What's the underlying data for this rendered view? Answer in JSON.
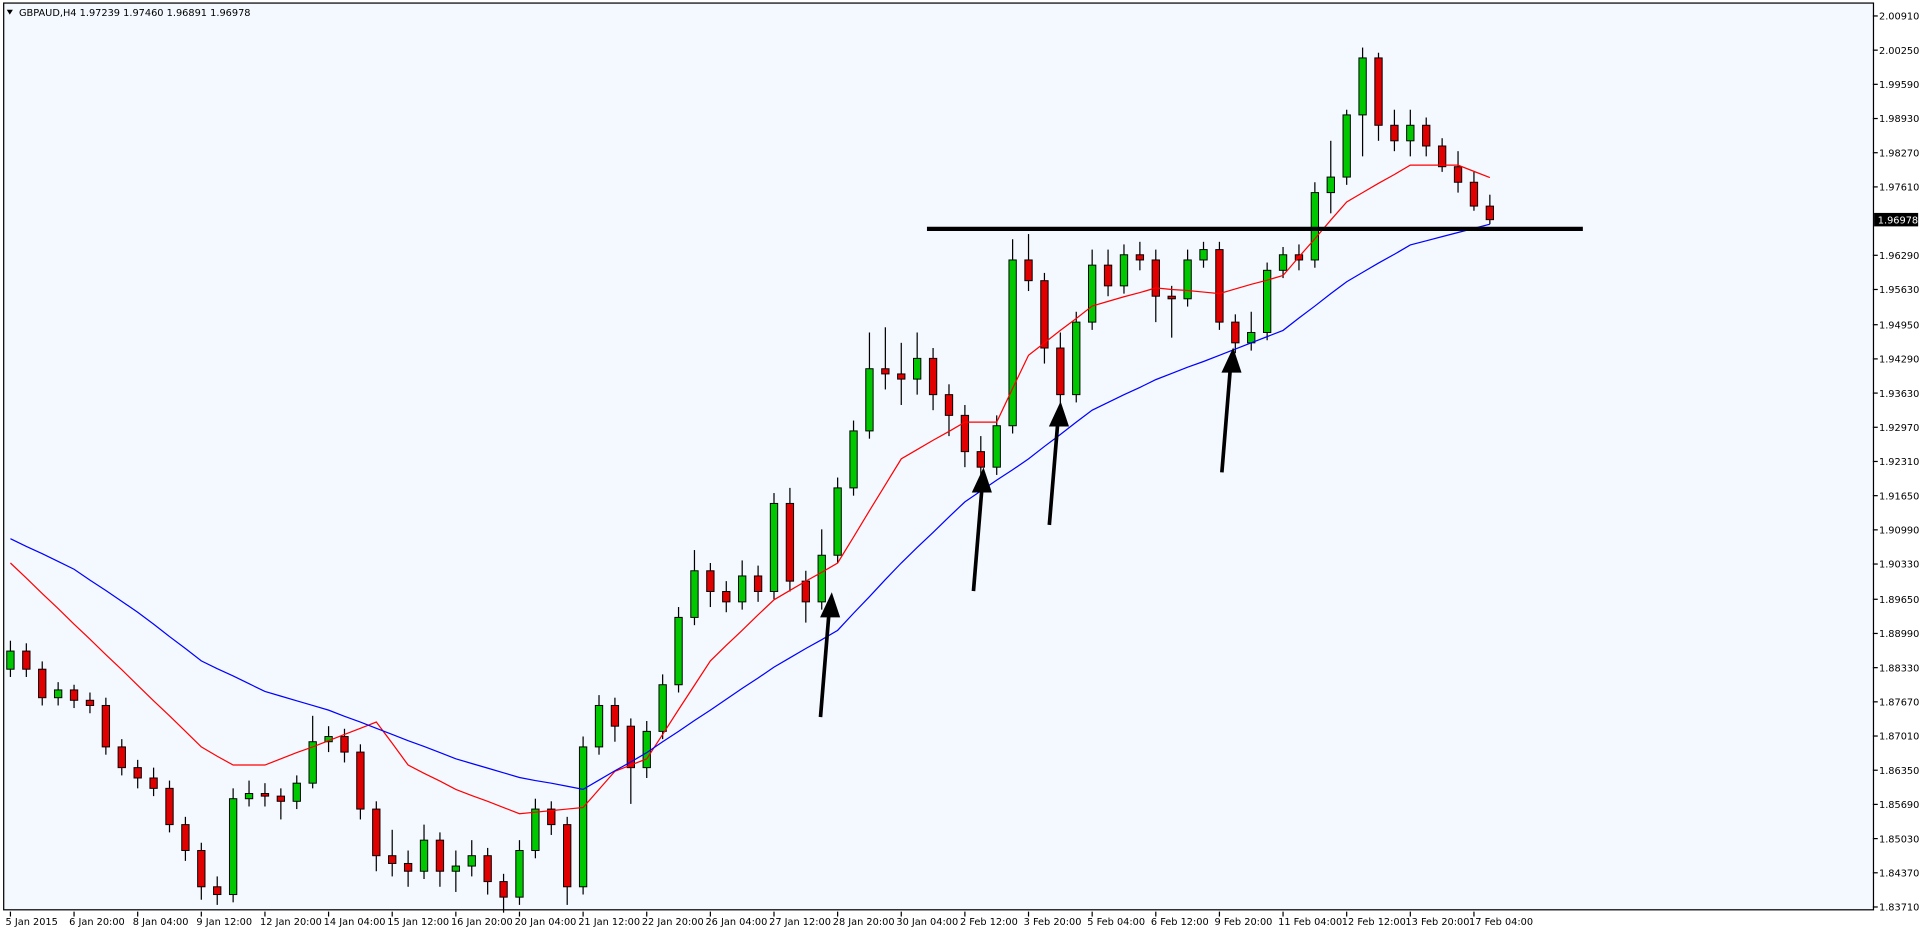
{
  "chart_data": {
    "type": "candlestick",
    "symbol": "GBPAUD,H4",
    "header_quote": [
      "1.97239",
      "1.97460",
      "1.96891",
      "1.96978"
    ],
    "up_color": "#00c800",
    "down_color": "#e00000",
    "ylim": [
      1.8362,
      2.011
    ],
    "yticks": [
      {
        "value": 1.8371,
        "label": "1.83710"
      },
      {
        "value": 1.8437,
        "label": "1.84370"
      },
      {
        "value": 1.8503,
        "label": "1.85030"
      },
      {
        "value": 1.8569,
        "label": "1.85690"
      },
      {
        "value": 1.8635,
        "label": "1.86350"
      },
      {
        "value": 1.8701,
        "label": "1.87010"
      },
      {
        "value": 1.8767,
        "label": "1.87670"
      },
      {
        "value": 1.8833,
        "label": "1.88330"
      },
      {
        "value": 1.8899,
        "label": "1.88990"
      },
      {
        "value": 1.8965,
        "label": "1.89650"
      },
      {
        "value": 1.9033,
        "label": "1.90330"
      },
      {
        "value": 1.9099,
        "label": "1.90990"
      },
      {
        "value": 1.9165,
        "label": "1.91650"
      },
      {
        "value": 1.9231,
        "label": "1.92310"
      },
      {
        "value": 1.9297,
        "label": "1.92970"
      },
      {
        "value": 1.9363,
        "label": "1.93630"
      },
      {
        "value": 1.9429,
        "label": "1.94290"
      },
      {
        "value": 1.9495,
        "label": "1.94950"
      },
      {
        "value": 1.9563,
        "label": "1.95630"
      },
      {
        "value": 1.9629,
        "label": "1.96290"
      },
      {
        "value": 1.9761,
        "label": "1.97610"
      },
      {
        "value": 1.9827,
        "label": "1.98270"
      },
      {
        "value": 1.9893,
        "label": "1.98930"
      },
      {
        "value": 1.9959,
        "label": "1.99590"
      },
      {
        "value": 2.0025,
        "label": "2.00250"
      },
      {
        "value": 2.0091,
        "label": "2.00910"
      }
    ],
    "grid": false,
    "hline": 1.968,
    "categories": [
      "5 Jan 2015",
      null,
      null,
      null,
      "6 Jan 20:00",
      null,
      null,
      null,
      "8 Jan 04:00",
      null,
      null,
      null,
      "9 Jan 12:00",
      null,
      null,
      null,
      "12 Jan 20:00",
      null,
      null,
      null,
      "14 Jan 04:00",
      null,
      null,
      null,
      "15 Jan 12:00",
      null,
      null,
      null,
      "16 Jan 20:00",
      null,
      null,
      null,
      "20 Jan 04:00",
      null,
      null,
      null,
      "21 Jan 12:00",
      null,
      null,
      null,
      "22 Jan 20:00",
      null,
      null,
      null,
      "26 Jan 04:00",
      null,
      null,
      null,
      "27 Jan 12:00",
      null,
      null,
      null,
      "28 Jan 20:00",
      null,
      null,
      null,
      "30 Jan 04:00",
      null,
      null,
      null,
      "2 Feb 12:00",
      null,
      null,
      null,
      "3 Feb 20:00",
      null,
      null,
      null,
      "5 Feb 04:00",
      null,
      null,
      null,
      "6 Feb 12:00",
      null,
      null,
      null,
      "9 Feb 20:00",
      null,
      null,
      null,
      "11 Feb 04:00",
      null,
      null,
      null,
      "12 Feb 12:00",
      null,
      null,
      null,
      "13 Feb 20:00",
      null,
      null,
      null,
      "17 Feb 04:00",
      null
    ],
    "ohlc": [
      [
        1.883,
        1.8885,
        1.8815,
        1.8865
      ],
      [
        1.8865,
        1.888,
        1.8815,
        1.883
      ],
      [
        1.883,
        1.8845,
        1.876,
        1.8775
      ],
      [
        1.8775,
        1.8805,
        1.876,
        1.879
      ],
      [
        1.879,
        1.88,
        1.8755,
        1.877
      ],
      [
        1.877,
        1.8785,
        1.8745,
        1.876
      ],
      [
        1.876,
        1.8775,
        1.8665,
        1.868
      ],
      [
        1.868,
        1.8695,
        1.8625,
        1.864
      ],
      [
        1.864,
        1.8655,
        1.86,
        1.862
      ],
      [
        1.862,
        1.864,
        1.8585,
        1.86
      ],
      [
        1.86,
        1.8615,
        1.8515,
        1.853
      ],
      [
        1.853,
        1.8545,
        1.846,
        1.848
      ],
      [
        1.848,
        1.8495,
        1.8385,
        1.841
      ],
      [
        1.841,
        1.843,
        1.8375,
        1.8395
      ],
      [
        1.8395,
        1.86,
        1.838,
        1.858
      ],
      [
        1.858,
        1.8615,
        1.8565,
        1.859
      ],
      [
        1.859,
        1.861,
        1.8565,
        1.8585
      ],
      [
        1.8585,
        1.86,
        1.854,
        1.8575
      ],
      [
        1.8575,
        1.8625,
        1.856,
        1.861
      ],
      [
        1.861,
        1.874,
        1.86,
        1.869
      ],
      [
        1.869,
        1.872,
        1.867,
        1.87
      ],
      [
        1.87,
        1.8715,
        1.865,
        1.867
      ],
      [
        1.867,
        1.8685,
        1.854,
        1.856
      ],
      [
        1.856,
        1.8575,
        1.844,
        1.847
      ],
      [
        1.847,
        1.852,
        1.843,
        1.8455
      ],
      [
        1.8455,
        1.848,
        1.841,
        1.844
      ],
      [
        1.844,
        1.853,
        1.8425,
        1.85
      ],
      [
        1.85,
        1.8515,
        1.841,
        1.844
      ],
      [
        1.844,
        1.848,
        1.84,
        1.845
      ],
      [
        1.845,
        1.85,
        1.843,
        1.847
      ],
      [
        1.847,
        1.8485,
        1.8395,
        1.842
      ],
      [
        1.842,
        1.8435,
        1.836,
        1.839
      ],
      [
        1.839,
        1.85,
        1.8375,
        1.848
      ],
      [
        1.848,
        1.858,
        1.8465,
        1.856
      ],
      [
        1.856,
        1.8575,
        1.851,
        1.853
      ],
      [
        1.853,
        1.8545,
        1.8375,
        1.841
      ],
      [
        1.841,
        1.87,
        1.8395,
        1.868
      ],
      [
        1.868,
        1.878,
        1.8665,
        1.876
      ],
      [
        1.876,
        1.8775,
        1.869,
        1.872
      ],
      [
        1.872,
        1.8735,
        1.857,
        1.864
      ],
      [
        1.864,
        1.873,
        1.862,
        1.871
      ],
      [
        1.871,
        1.882,
        1.8695,
        1.88
      ],
      [
        1.88,
        1.895,
        1.8785,
        1.893
      ],
      [
        1.893,
        1.906,
        1.8915,
        1.902
      ],
      [
        1.902,
        1.9035,
        1.895,
        1.898
      ],
      [
        1.898,
        1.9,
        1.894,
        1.896
      ],
      [
        1.896,
        1.904,
        1.8945,
        1.901
      ],
      [
        1.901,
        1.903,
        1.896,
        1.898
      ],
      [
        1.898,
        1.917,
        1.8965,
        1.915
      ],
      [
        1.915,
        1.918,
        1.898,
        1.9
      ],
      [
        1.9,
        1.902,
        1.892,
        1.896
      ],
      [
        1.896,
        1.91,
        1.8945,
        1.905
      ],
      [
        1.905,
        1.92,
        1.9035,
        1.918
      ],
      [
        1.918,
        1.931,
        1.9165,
        1.929
      ],
      [
        1.929,
        1.948,
        1.9275,
        1.941
      ],
      [
        1.941,
        1.949,
        1.937,
        1.94
      ],
      [
        1.94,
        1.946,
        1.934,
        1.939
      ],
      [
        1.939,
        1.948,
        1.936,
        1.943
      ],
      [
        1.943,
        1.945,
        1.933,
        1.936
      ],
      [
        1.936,
        1.938,
        1.928,
        1.932
      ],
      [
        1.932,
        1.934,
        1.922,
        1.925
      ],
      [
        1.925,
        1.928,
        1.919,
        1.922
      ],
      [
        1.922,
        1.932,
        1.9205,
        1.93
      ],
      [
        1.93,
        1.966,
        1.9285,
        1.962
      ],
      [
        1.962,
        1.967,
        1.956,
        1.958
      ],
      [
        1.958,
        1.9595,
        1.942,
        1.945
      ],
      [
        1.945,
        1.948,
        1.933,
        1.936
      ],
      [
        1.936,
        1.952,
        1.9345,
        1.95
      ],
      [
        1.95,
        1.964,
        1.9485,
        1.961
      ],
      [
        1.961,
        1.964,
        1.955,
        1.957
      ],
      [
        1.957,
        1.965,
        1.9555,
        1.963
      ],
      [
        1.963,
        1.9655,
        1.96,
        1.962
      ],
      [
        1.962,
        1.964,
        1.95,
        1.955
      ],
      [
        1.955,
        1.957,
        1.947,
        1.9545
      ],
      [
        1.9545,
        1.964,
        1.953,
        1.962
      ],
      [
        1.962,
        1.9655,
        1.9605,
        1.964
      ],
      [
        1.964,
        1.9655,
        1.9485,
        1.95
      ],
      [
        1.95,
        1.9515,
        1.944,
        1.946
      ],
      [
        1.946,
        1.952,
        1.9445,
        1.948
      ],
      [
        1.948,
        1.9615,
        1.9465,
        1.96
      ],
      [
        1.96,
        1.9645,
        1.9585,
        1.963
      ],
      [
        1.963,
        1.965,
        1.96,
        1.962
      ],
      [
        1.962,
        1.977,
        1.9605,
        1.975
      ],
      [
        1.975,
        1.985,
        1.971,
        1.978
      ],
      [
        1.978,
        1.991,
        1.9765,
        1.99
      ],
      [
        1.99,
        2.003,
        1.982,
        2.001
      ],
      [
        2.001,
        2.002,
        1.985,
        1.988
      ],
      [
        1.988,
        1.991,
        1.983,
        1.985
      ],
      [
        1.985,
        1.991,
        1.982,
        1.988
      ],
      [
        1.988,
        1.9895,
        1.982,
        1.984
      ],
      [
        1.984,
        1.9855,
        1.979,
        1.98
      ],
      [
        1.98,
        1.983,
        1.975,
        1.977
      ],
      [
        1.977,
        1.979,
        1.9715,
        1.9724
      ],
      [
        1.97239,
        1.9746,
        1.96891,
        1.96978
      ]
    ],
    "series": [
      {
        "color": "#ff0000",
        "values": [
          1.9035,
          1.9006,
          1.8976,
          1.8947,
          1.8917,
          1.8888,
          1.8858,
          1.8829,
          1.8799,
          1.8769,
          1.874,
          1.871,
          1.868,
          1.8662,
          1.8645,
          1.8645,
          1.8645,
          1.8657,
          1.8669,
          1.868,
          1.8692,
          1.8704,
          1.8716,
          1.8728,
          1.8687,
          1.8645,
          1.8629,
          1.8614,
          1.8598,
          1.8586,
          1.8575,
          1.8563,
          1.8551,
          1.8554,
          1.8557,
          1.856,
          1.8563,
          1.8598,
          1.8633,
          1.8645,
          1.8657,
          1.8704,
          1.8752,
          1.8799,
          1.8846,
          1.8876,
          1.8905,
          1.8935,
          1.8964,
          1.8982,
          1.9,
          1.9017,
          1.9035,
          1.9085,
          1.9136,
          1.9186,
          1.9236,
          1.9254,
          1.9272,
          1.9289,
          1.9307,
          1.9307,
          1.9307,
          1.9372,
          1.9436,
          1.946,
          1.9484,
          1.9507,
          1.9531,
          1.954,
          1.9549,
          1.9557,
          1.9566,
          1.9563,
          1.9561,
          1.9558,
          1.9555,
          1.9564,
          1.9573,
          1.9581,
          1.959,
          1.9626,
          1.9661,
          1.9697,
          1.9732,
          1.975,
          1.9768,
          1.9785,
          1.9803,
          1.9803,
          1.9803,
          1.9803,
          1.9791,
          1.9779
        ]
      },
      {
        "color": "#0000ff",
        "values": [
          1.9082,
          1.9067,
          1.9053,
          1.9038,
          1.9023,
          1.9002,
          1.8982,
          1.8961,
          1.894,
          1.8917,
          1.8893,
          1.887,
          1.8846,
          1.8831,
          1.8817,
          1.8802,
          1.8787,
          1.8778,
          1.8769,
          1.876,
          1.8751,
          1.8739,
          1.8728,
          1.8716,
          1.8704,
          1.8692,
          1.8681,
          1.8669,
          1.8657,
          1.8648,
          1.8639,
          1.863,
          1.8621,
          1.8615,
          1.861,
          1.8604,
          1.8598,
          1.8616,
          1.8634,
          1.8651,
          1.8669,
          1.869,
          1.871,
          1.8731,
          1.8751,
          1.8772,
          1.8793,
          1.8813,
          1.8834,
          1.8852,
          1.887,
          1.8887,
          1.8905,
          1.8938,
          1.897,
          1.9003,
          1.9035,
          1.9065,
          1.9094,
          1.9124,
          1.9153,
          1.9174,
          1.9195,
          1.9215,
          1.9236,
          1.926,
          1.9283,
          1.9307,
          1.933,
          1.9345,
          1.936,
          1.9374,
          1.9389,
          1.9401,
          1.9413,
          1.9424,
          1.9436,
          1.9448,
          1.946,
          1.9472,
          1.9484,
          1.9508,
          1.9531,
          1.9555,
          1.9578,
          1.9596,
          1.9614,
          1.9631,
          1.9649,
          1.9657,
          1.9665,
          1.9673,
          1.9681,
          1.9689
        ]
      }
    ]
  }
}
